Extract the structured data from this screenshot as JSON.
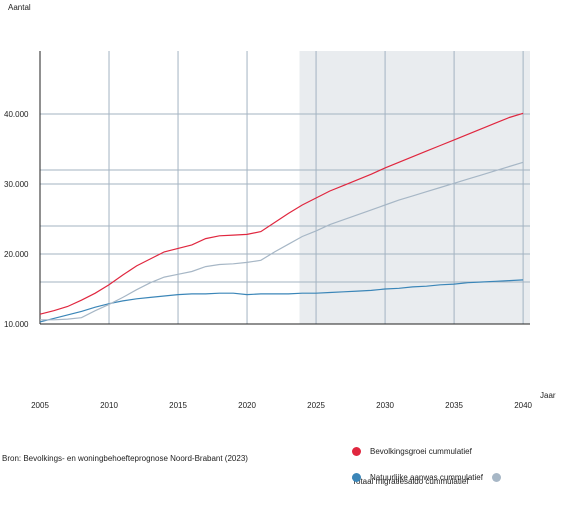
{
  "chart_data": {
    "type": "line",
    "ylabel": "Aantal",
    "xlabel": "Jaar",
    "xlim": [
      2005,
      2040.5
    ],
    "ylim": [
      10000,
      49000
    ],
    "x_ticks": [
      2005,
      2010,
      2015,
      2020,
      2025,
      2030,
      2035,
      2040
    ],
    "x_tick_labels": [
      "2005",
      "2010",
      "2015",
      "2020",
      "2025",
      "2030",
      "2035",
      "2040"
    ],
    "y_ticks": [
      10000,
      20000,
      30000,
      40000
    ],
    "y_tick_labels": [
      "10.000",
      "20.000",
      "30.000",
      "40.000"
    ],
    "y_grid_values": [
      10000,
      16000,
      20000,
      24000,
      30000,
      32000,
      40000
    ],
    "forecast_shade_start": 2023.8,
    "grid": true,
    "series": [
      {
        "name": "Bevolkingsgroei cummulatief",
        "color": "#e0273f",
        "x": [
          2005,
          2006,
          2007,
          2008,
          2009,
          2010,
          2011,
          2012,
          2013,
          2014,
          2015,
          2016,
          2017,
          2018,
          2019,
          2020,
          2021,
          2022,
          2023,
          2024,
          2025,
          2026,
          2027,
          2028,
          2029,
          2030,
          2031,
          2032,
          2033,
          2034,
          2035,
          2036,
          2037,
          2038,
          2039,
          2040
        ],
        "values": [
          11400,
          11900,
          12500,
          13400,
          14400,
          15600,
          17000,
          18300,
          19300,
          20300,
          20800,
          21300,
          22200,
          22600,
          22700,
          22800,
          23200,
          24500,
          25800,
          27000,
          28000,
          29000,
          29800,
          30600,
          31400,
          32300,
          33100,
          33900,
          34700,
          35500,
          36300,
          37100,
          37900,
          38700,
          39500,
          40100
        ]
      },
      {
        "name": "Natuurlijke aanwas cummulatief",
        "color": "#3b86b8",
        "x": [
          2005,
          2006,
          2007,
          2008,
          2009,
          2010,
          2011,
          2012,
          2013,
          2014,
          2015,
          2016,
          2017,
          2018,
          2019,
          2020,
          2021,
          2022,
          2023,
          2024,
          2025,
          2026,
          2027,
          2028,
          2029,
          2030,
          2031,
          2032,
          2033,
          2034,
          2035,
          2036,
          2037,
          2038,
          2039,
          2040
        ],
        "values": [
          10300,
          10800,
          11300,
          11800,
          12400,
          12900,
          13300,
          13600,
          13800,
          14000,
          14200,
          14300,
          14300,
          14400,
          14400,
          14200,
          14300,
          14300,
          14300,
          14400,
          14400,
          14500,
          14600,
          14700,
          14800,
          15000,
          15100,
          15300,
          15400,
          15600,
          15700,
          15900,
          16000,
          16100,
          16200,
          16300
        ]
      },
      {
        "name": "Totaal migratiesaldo cummulatief",
        "color": "#a7b7c6",
        "x": [
          2005,
          2006,
          2007,
          2008,
          2009,
          2010,
          2011,
          2012,
          2013,
          2014,
          2015,
          2016,
          2017,
          2018,
          2019,
          2020,
          2021,
          2022,
          2023,
          2024,
          2025,
          2026,
          2027,
          2028,
          2029,
          2030,
          2031,
          2032,
          2033,
          2034,
          2035,
          2036,
          2037,
          2038,
          2039,
          2040
        ],
        "values": [
          10600,
          10600,
          10700,
          10900,
          11900,
          12800,
          13800,
          14900,
          15900,
          16700,
          17100,
          17500,
          18200,
          18500,
          18600,
          18800,
          19100,
          20300,
          21400,
          22500,
          23300,
          24200,
          24900,
          25600,
          26300,
          27000,
          27700,
          28300,
          28900,
          29500,
          30100,
          30700,
          31300,
          31900,
          32500,
          33100
        ]
      }
    ]
  },
  "source_text": "Bron: Bevolkings- en woningbehoefteprognose Noord-Brabant (2023)",
  "legend": [
    {
      "label": "Bevolkingsgroei cummulatief",
      "color": "#e0273f"
    },
    {
      "label": "Natuurlijke aanwas cummulatief",
      "color": "#3b86b8"
    },
    {
      "label": "Totaal migratiesaldo cummulatief",
      "color": "#a7b7c6"
    }
  ],
  "colors": {
    "shade": "#e9ecef",
    "grid": "#a3b3c2",
    "axis": "#222222"
  }
}
